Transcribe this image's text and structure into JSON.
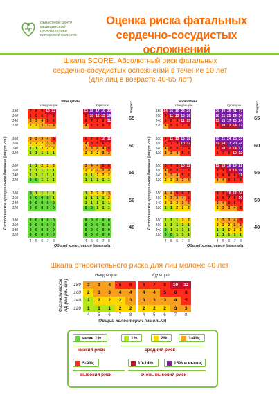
{
  "header": {
    "org_name": "ОБЛАСТНОЙ ЦЕНТР МЕДИЦИНСКОЙ ПРОФИЛАКТИКИ КИРОВСКОЙ ОБЛАСТИ",
    "title_line1": "Оценка риска фатальных",
    "title_line2": "сердечно-сосудистых осложнений",
    "subtitle_line1": "Шкала SCORE. Абсолютный риск фатальных",
    "subtitle_line2": "сердечно-сосудистых осложнений в течение 10 лет",
    "subtitle_line3": "(для лиц в возрасте 40-65 лет)"
  },
  "colors": {
    "green": "#66d93a",
    "lightgreen": "#b5e61d",
    "yellow": "#ffd700",
    "orange": "#f7a020",
    "red": "#ff2a1a",
    "darkred": "#c8102e",
    "purple": "#7b1fa2"
  },
  "chart_data": {
    "type": "table",
    "title": "Шкала SCORE. Абсолютный риск фатальных сердечно-сосудистых осложнений в течение 10 лет (для лиц в возрасте 40-65 лет)",
    "ylabel": "Систолическое артериальное давление (мм рт. ст.)",
    "xlabel": "Общий холестерин (ммоль/л)",
    "age_label": "Возраст",
    "x_ticks": [
      "4",
      "5",
      "6",
      "7",
      "8"
    ],
    "sbp_rows": [
      "180",
      "160",
      "140",
      "120"
    ],
    "ages": [
      "65",
      "60",
      "55",
      "50",
      "40"
    ],
    "women": {
      "label": "ЖЕНЩИНЫ",
      "nonsmoking_label": "Некурящие",
      "smoking_label": "Курящие",
      "nonsmoking": [
        [
          [
            7,
            8,
            9,
            10,
            12
          ],
          [
            5,
            5,
            6,
            7,
            8
          ],
          [
            3,
            3,
            4,
            5,
            6
          ],
          [
            2,
            2,
            3,
            3,
            4
          ]
        ],
        [
          [
            3,
            3,
            3,
            4,
            5
          ],
          [
            2,
            2,
            2,
            3,
            3
          ],
          [
            1,
            1,
            2,
            2,
            2
          ],
          [
            1,
            1,
            1,
            1,
            1
          ]
        ],
        [
          [
            1,
            1,
            2,
            2,
            2
          ],
          [
            1,
            1,
            1,
            1,
            1
          ],
          [
            1,
            1,
            1,
            1,
            1
          ],
          [
            0,
            0,
            1,
            1,
            1
          ]
        ],
        [
          [
            0,
            1,
            1,
            1,
            1
          ],
          [
            0,
            0,
            0,
            0,
            1
          ],
          [
            0,
            0,
            0,
            0,
            0
          ],
          [
            0,
            0,
            0,
            0,
            0
          ]
        ],
        [
          [
            0,
            0,
            0,
            0,
            0
          ],
          [
            0,
            0,
            0,
            0,
            0
          ],
          [
            0,
            0,
            0,
            0,
            0
          ],
          [
            0,
            0,
            0,
            0,
            0
          ]
        ]
      ],
      "smoking": [
        [
          [
            13,
            15,
            17,
            19,
            22
          ],
          [
            9,
            10,
            12,
            13,
            16
          ],
          [
            6,
            7,
            8,
            9,
            11
          ],
          [
            4,
            5,
            5,
            6,
            7
          ]
        ],
        [
          [
            6,
            7,
            8,
            10,
            11
          ],
          [
            4,
            5,
            5,
            6,
            7
          ],
          [
            3,
            3,
            4,
            4,
            5
          ],
          [
            2,
            2,
            2,
            3,
            3
          ]
        ],
        [
          [
            3,
            4,
            4,
            5,
            6
          ],
          [
            2,
            2,
            3,
            3,
            4
          ],
          [
            1,
            1,
            2,
            2,
            2
          ],
          [
            1,
            1,
            1,
            1,
            1
          ]
        ],
        [
          [
            1,
            2,
            2,
            2,
            3
          ],
          [
            1,
            1,
            1,
            1,
            2
          ],
          [
            1,
            1,
            1,
            1,
            1
          ],
          [
            0,
            0,
            1,
            1,
            1
          ]
        ],
        [
          [
            0,
            0,
            0,
            0,
            0
          ],
          [
            0,
            0,
            0,
            0,
            0
          ],
          [
            0,
            0,
            0,
            0,
            0
          ],
          [
            0,
            0,
            0,
            0,
            0
          ]
        ]
      ]
    },
    "men": {
      "label": "МУЖЧИНЫ",
      "nonsmoking_label": "Некурящие",
      "smoking_label": "Курящие",
      "nonsmoking": [
        [
          [
            14,
            16,
            19,
            22,
            26
          ],
          [
            9,
            11,
            13,
            15,
            16
          ],
          [
            6,
            8,
            9,
            11,
            13
          ],
          [
            4,
            5,
            6,
            7,
            9
          ]
        ],
        [
          [
            9,
            11,
            13,
            15,
            18
          ],
          [
            6,
            7,
            9,
            10,
            12
          ],
          [
            4,
            5,
            6,
            7,
            9
          ],
          [
            3,
            3,
            4,
            5,
            6
          ]
        ],
        [
          [
            6,
            7,
            8,
            10,
            12
          ],
          [
            4,
            5,
            6,
            7,
            8
          ],
          [
            3,
            3,
            4,
            5,
            6
          ],
          [
            2,
            2,
            3,
            3,
            4
          ]
        ],
        [
          [
            4,
            4,
            5,
            6,
            7
          ],
          [
            2,
            3,
            3,
            4,
            5
          ],
          [
            2,
            2,
            2,
            3,
            3
          ],
          [
            1,
            1,
            2,
            2,
            2
          ]
        ],
        [
          [
            1,
            1,
            1,
            2,
            2
          ],
          [
            1,
            1,
            1,
            1,
            1
          ],
          [
            0,
            1,
            1,
            1,
            1
          ],
          [
            0,
            0,
            1,
            1,
            1
          ]
        ]
      ],
      "smoking": [
        [
          [
            26,
            30,
            35,
            41,
            47
          ],
          [
            18,
            21,
            25,
            29,
            34
          ],
          [
            13,
            15,
            17,
            20,
            24
          ],
          [
            9,
            10,
            12,
            14,
            17
          ]
        ],
        [
          [
            18,
            21,
            24,
            28,
            33
          ],
          [
            12,
            14,
            17,
            20,
            24
          ],
          [
            8,
            10,
            12,
            14,
            17
          ],
          [
            6,
            7,
            8,
            10,
            12
          ]
        ],
        [
          [
            12,
            13,
            16,
            19,
            22
          ],
          [
            8,
            9,
            11,
            13,
            16
          ],
          [
            5,
            6,
            8,
            9,
            11
          ],
          [
            4,
            4,
            5,
            6,
            8
          ]
        ],
        [
          [
            8,
            9,
            10,
            12,
            14
          ],
          [
            5,
            6,
            7,
            8,
            10
          ],
          [
            3,
            4,
            5,
            6,
            7
          ],
          [
            2,
            3,
            3,
            4,
            5
          ]
        ],
        [
          [
            2,
            3,
            3,
            4,
            5
          ],
          [
            2,
            2,
            2,
            3,
            3
          ],
          [
            1,
            1,
            2,
            2,
            2
          ],
          [
            1,
            1,
            1,
            1,
            1
          ]
        ]
      ]
    },
    "relative": {
      "title": "Шкала относительного риска для лиц моложе 40 лет",
      "nonsmoking_label": "Некурящие",
      "smoking_label": "Курящие",
      "ylabel_line1": "Систолическое",
      "ylabel_line2": "АД (мм рт. ст.)",
      "xlabel": "Общий холестерин (ммоль/л)",
      "x_ticks": [
        "4",
        "5",
        "6",
        "7",
        "8"
      ],
      "sbp_rows": [
        "180",
        "160",
        "140",
        "120"
      ],
      "nonsmoking": [
        [
          3,
          3,
          4,
          5,
          6
        ],
        [
          2,
          3,
          3,
          4,
          4
        ],
        [
          1,
          2,
          2,
          2,
          3
        ],
        [
          1,
          1,
          1,
          2,
          2
        ]
      ],
      "smoking": [
        [
          6,
          7,
          8,
          10,
          12
        ],
        [
          4,
          4,
          5,
          6,
          8
        ],
        [
          3,
          3,
          3,
          4,
          5
        ],
        [
          2,
          2,
          2,
          3,
          3
        ]
      ]
    }
  },
  "legend": {
    "items": [
      {
        "label": "ниже 1%;",
        "color": "#66d93a"
      },
      {
        "label": "1%;",
        "color": "#b5e61d"
      },
      {
        "label": "2%;",
        "color": "#ffd700"
      },
      {
        "label": "3-4%;",
        "color": "#f7a020"
      },
      {
        "label": "5-9%;",
        "color": "#ff2a1a"
      },
      {
        "label": "10-14%;",
        "color": "#c8102e"
      },
      {
        "label": "15% и выше;",
        "color": "#7b1fa2"
      }
    ],
    "low_risk": "низкий риск",
    "medium_risk": "средний риск",
    "high_risk": "высокий риск",
    "very_high_risk": "очень высокий риск"
  }
}
